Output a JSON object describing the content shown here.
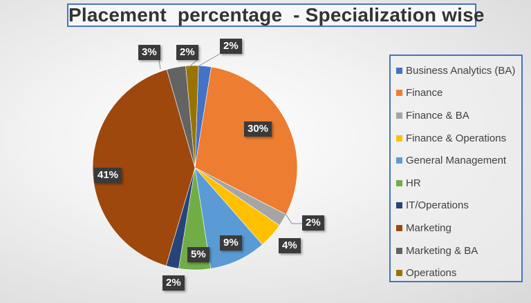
{
  "chart_data": {
    "type": "pie",
    "title": "Placement  percentage  - Specialization wise",
    "categories": [
      "Business Analytics (BA)",
      "Finance",
      "Finance & BA",
      "Finance & Operations",
      "General Management",
      "HR",
      "IT/Operations",
      "Marketing",
      "Marketing & BA",
      "Operations"
    ],
    "values": [
      2,
      30,
      2,
      4,
      9,
      5,
      2,
      41,
      3,
      2
    ],
    "labels": [
      "2%",
      "30%",
      "2%",
      "4%",
      "9%",
      "5%",
      "2%",
      "41%",
      "3%",
      "2%"
    ],
    "colors": [
      "#4472c4",
      "#ed7d31",
      "#a5a5a5",
      "#ffc000",
      "#5b9bd5",
      "#70ad47",
      "#264478",
      "#9e480e",
      "#636363",
      "#997300"
    ],
    "legend_position": "right"
  },
  "legend": {
    "items": [
      {
        "label": "Business Analytics (BA)",
        "color": "#4472c4"
      },
      {
        "label": "Finance",
        "color": "#ed7d31"
      },
      {
        "label": "Finance & BA",
        "color": "#a5a5a5"
      },
      {
        "label": "Finance & Operations",
        "color": "#ffc000"
      },
      {
        "label": "General Management",
        "color": "#5b9bd5"
      },
      {
        "label": "HR",
        "color": "#70ad47"
      },
      {
        "label": "IT/Operations",
        "color": "#264478"
      },
      {
        "label": "Marketing",
        "color": "#9e480e"
      },
      {
        "label": "Marketing & BA",
        "color": "#636363"
      },
      {
        "label": "Operations",
        "color": "#997300"
      }
    ]
  }
}
